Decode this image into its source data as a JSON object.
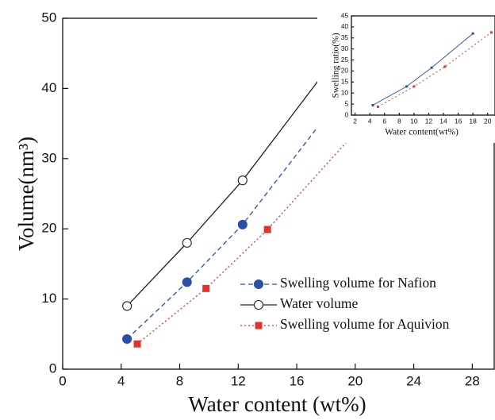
{
  "chart_data": [
    {
      "type": "line",
      "xlabel": "Water content (wt%)",
      "ylabel": "Volume(nm³)",
      "xlim": [
        0,
        29.5
      ],
      "xticks": [
        0,
        4,
        8,
        12,
        16,
        20,
        24,
        28
      ],
      "ylim": [
        0,
        50
      ],
      "yticks": [
        0,
        10,
        20,
        30,
        40,
        50
      ],
      "legend": "lower right",
      "series": [
        {
          "name": "Swelling volume for Nafion",
          "color": "#2b4ea8",
          "marker": "filled-circle",
          "dash": "dashed",
          "x": [
            4.4,
            8.5,
            12.3,
            17.8
          ],
          "values": [
            4.3,
            12.4,
            20.6,
            35.5
          ]
        },
        {
          "name": "Water volume",
          "color": "#222222",
          "marker": "open-circle",
          "dash": "solid",
          "x": [
            4.4,
            8.5,
            12.3,
            17.8
          ],
          "values": [
            9.0,
            18.0,
            26.9,
            42.0
          ]
        },
        {
          "name": "Swelling volume for Aquivion",
          "color": "#e8302a",
          "marker": "square",
          "dash": "dotted",
          "x": [
            5.1,
            9.8,
            14.0,
            20.2
          ],
          "values": [
            3.6,
            11.5,
            19.9,
            34.2
          ]
        }
      ]
    },
    {
      "type": "line",
      "xlabel": "Water content(wt%)",
      "ylabel": "Swelling ratio(%)",
      "xlim": [
        1.5,
        21
      ],
      "xticks": [
        2,
        4,
        6,
        8,
        10,
        12,
        14,
        16,
        18,
        20
      ],
      "ylim": [
        0,
        45
      ],
      "yticks": [
        0,
        5,
        10,
        15,
        20,
        25,
        30,
        35,
        40,
        45
      ],
      "series": [
        {
          "color": "#2b4ea8",
          "marker": "small-square",
          "dash": "solid",
          "x": [
            4.4,
            9,
            12.4,
            18
          ],
          "values": [
            4.5,
            13,
            21.5,
            37
          ]
        },
        {
          "color": "#e8302a",
          "marker": "small-square",
          "dash": "dotted",
          "x": [
            5.1,
            10,
            14.2,
            20.5
          ],
          "values": [
            3.8,
            13,
            22,
            37.5
          ]
        }
      ]
    }
  ]
}
